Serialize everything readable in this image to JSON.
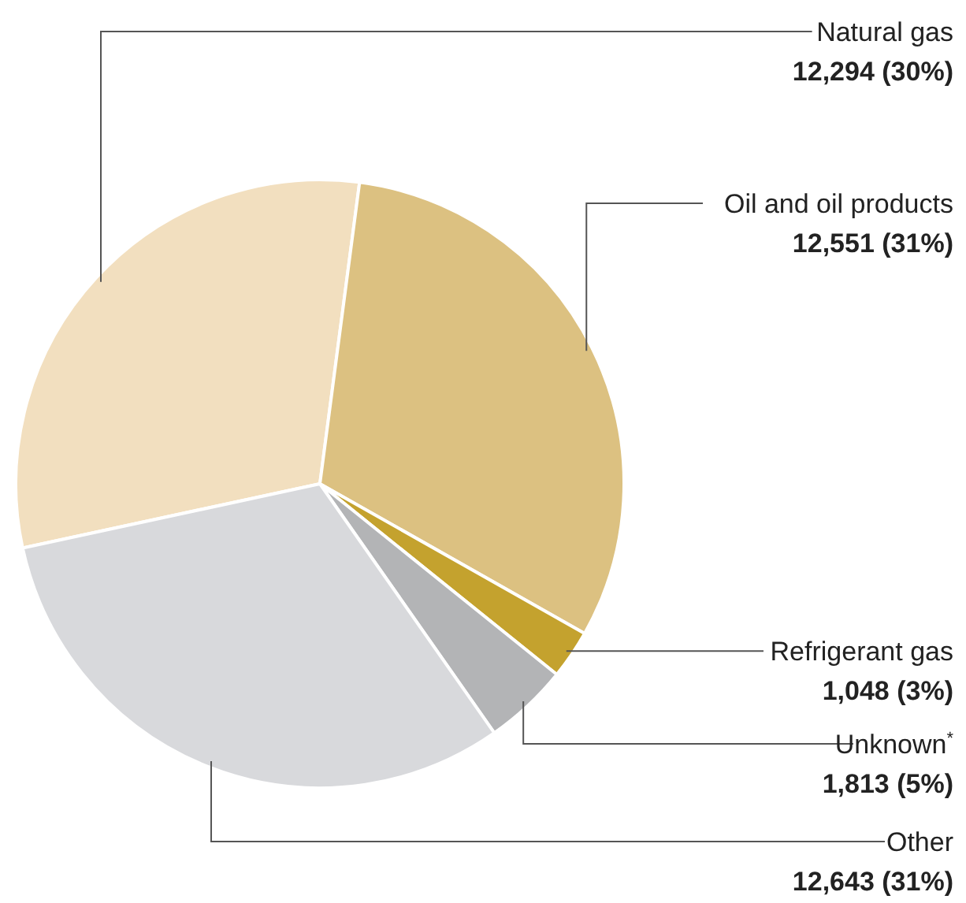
{
  "chart_data": {
    "type": "pie",
    "categories": [
      "Natural gas",
      "Oil and oil products",
      "Refrigerant gas",
      "Unknown$^{*}$",
      "Other"
    ],
    "values": [
      12294,
      12551,
      1048,
      1813,
      12643
    ],
    "value_labels": [
      "12,294 (30%)",
      "12,551 (31%)",
      "1,048 (3%)",
      "1,813 (5%)",
      "12,643 (31%)"
    ],
    "colors": [
      "#f2dfbf",
      "#dcc181",
      "#c4a22e",
      "#b3b4b6",
      "#d8d9dc"
    ],
    "legend": false
  }
}
